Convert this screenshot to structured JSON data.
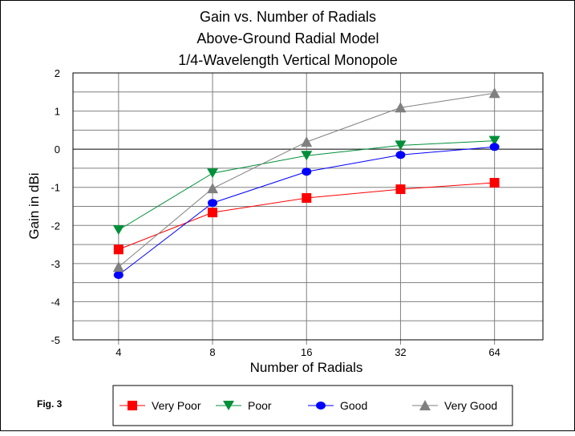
{
  "chart_data": {
    "type": "line",
    "title": [
      "Gain vs. Number of Radials",
      "Above-Ground Radial Model",
      "1/4-Wavelength Vertical Monopole"
    ],
    "xlabel": "Number of Radials",
    "ylabel": "Gain in dBi",
    "categories": [
      "4",
      "8",
      "16",
      "32",
      "64"
    ],
    "ylim": [
      -5,
      2
    ],
    "yticks": [
      "2",
      "1",
      "0",
      "-1",
      "-2",
      "-3",
      "-4",
      "-5"
    ],
    "minor_grid_step": 0.5,
    "grid": true,
    "legend_position": "bottom",
    "series": [
      {
        "name": "Very Poor",
        "color": "#ff0000",
        "marker": "square",
        "values": [
          -2.63,
          -1.66,
          -1.28,
          -1.05,
          -0.88
        ]
      },
      {
        "name": "Poor",
        "color": "#008f39",
        "marker": "triangle-down",
        "values": [
          -2.12,
          -0.63,
          -0.17,
          0.1,
          0.22
        ]
      },
      {
        "name": "Good",
        "color": "#0000ff",
        "marker": "circle",
        "values": [
          -3.3,
          -1.41,
          -0.59,
          -0.15,
          0.06
        ]
      },
      {
        "name": "Very Good",
        "color": "#808080",
        "marker": "triangle-up",
        "values": [
          -3.09,
          -1.03,
          0.19,
          1.09,
          1.47
        ]
      }
    ]
  },
  "figure_label": "Fig. 3"
}
